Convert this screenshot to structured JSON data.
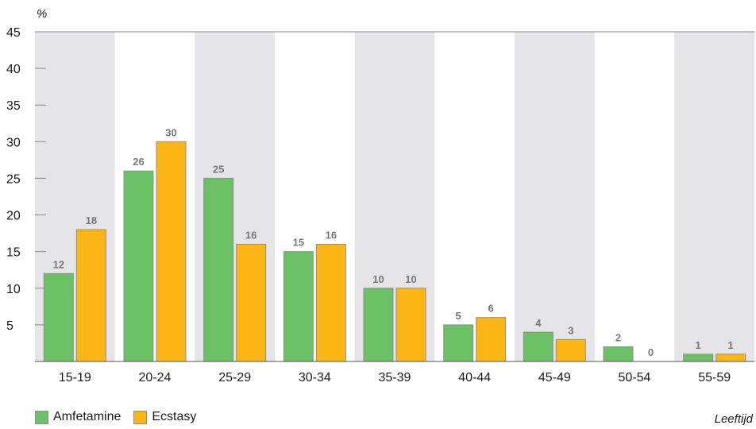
{
  "chart_data": {
    "type": "bar",
    "ylabel": "%",
    "xlabel": "Leeftijd",
    "ylim": [
      0,
      45
    ],
    "yticks": [
      5,
      10,
      15,
      20,
      25,
      30,
      35,
      40,
      45
    ],
    "categories": [
      "15-19",
      "20-24",
      "25-29",
      "30-34",
      "35-39",
      "40-44",
      "45-49",
      "50-54",
      "55-59"
    ],
    "series": [
      {
        "name": "Amfetamine",
        "color": "#6cc065",
        "values": [
          12,
          26,
          25,
          15,
          10,
          5,
          4,
          2,
          1
        ]
      },
      {
        "name": "Ecstasy",
        "color": "#fbb515",
        "values": [
          18,
          30,
          16,
          16,
          10,
          6,
          3,
          0,
          1
        ]
      }
    ],
    "band_color": "#e5e5e8",
    "legend_position": "bottom-left"
  }
}
